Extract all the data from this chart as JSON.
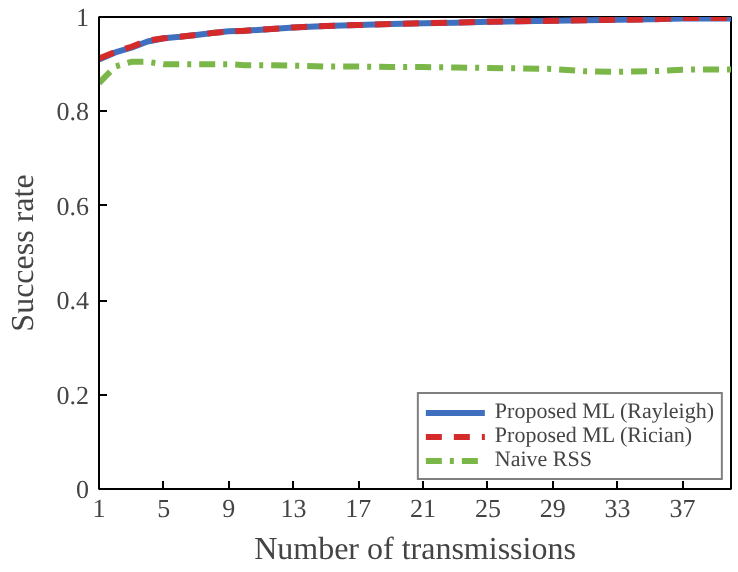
{
  "chart_data": {
    "type": "line",
    "xlabel": "Number of transmissions",
    "ylabel": "Success rate",
    "x": [
      1,
      2,
      3,
      4,
      5,
      6,
      7,
      8,
      9,
      10,
      11,
      13,
      15,
      17,
      19,
      21,
      23,
      25,
      27,
      29,
      31,
      33,
      35,
      37,
      38,
      39,
      40
    ],
    "series": [
      {
        "name": "Proposed ML (Rayleigh)",
        "color": "#3f6fbf",
        "line_style": "solid",
        "values": [
          0.91,
          0.925,
          0.935,
          0.948,
          0.955,
          0.958,
          0.962,
          0.966,
          0.97,
          0.971,
          0.973,
          0.978,
          0.981,
          0.983,
          0.985,
          0.987,
          0.988,
          0.99,
          0.991,
          0.992,
          0.993,
          0.994,
          0.995,
          0.997,
          0.997,
          0.997,
          0.997
        ]
      },
      {
        "name": "Proposed ML (Rician)",
        "color": "#d42a2a",
        "line_style": "dashed",
        "values": [
          0.912,
          0.926,
          0.937,
          0.95,
          0.955,
          0.958,
          0.962,
          0.966,
          0.969,
          0.971,
          0.973,
          0.978,
          0.981,
          0.983,
          0.985,
          0.987,
          0.988,
          0.99,
          0.991,
          0.992,
          0.993,
          0.994,
          0.995,
          0.998,
          0.998,
          0.998,
          0.998
        ]
      },
      {
        "name": "Naive RSS",
        "color": "#7ab648",
        "line_style": "dashdot",
        "values": [
          0.86,
          0.895,
          0.905,
          0.905,
          0.9,
          0.9,
          0.9,
          0.9,
          0.9,
          0.898,
          0.898,
          0.897,
          0.895,
          0.895,
          0.894,
          0.894,
          0.893,
          0.892,
          0.891,
          0.89,
          0.885,
          0.884,
          0.885,
          0.888,
          0.889,
          0.889,
          0.889
        ]
      }
    ],
    "xlim": [
      1,
      40
    ],
    "ylim": [
      0,
      1
    ],
    "xticks": [
      1,
      5,
      9,
      13,
      17,
      21,
      25,
      29,
      33,
      37
    ],
    "yticks": [
      0,
      0.2,
      0.4,
      0.6,
      0.8,
      1
    ],
    "grid": false,
    "legend": "bottom right"
  }
}
